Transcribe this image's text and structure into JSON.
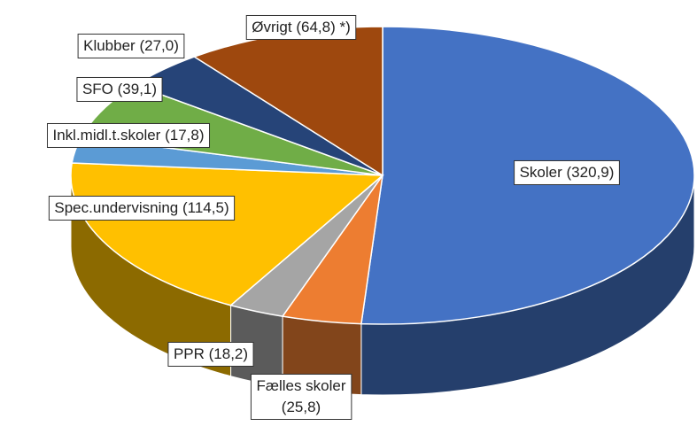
{
  "chart_data": {
    "type": "pie3d",
    "categories": [
      "Skoler",
      "Fælles skoler",
      "PPR",
      "Spec.undervisning",
      "Inkl.midl.t.skoler",
      "SFO",
      "Klubber",
      "Øvrigt"
    ],
    "values": [
      320.9,
      25.8,
      18.2,
      114.5,
      17.8,
      39.1,
      27.0,
      64.8
    ],
    "value_labels": [
      "(320,9)",
      "(25,8)",
      "(18,2)",
      "(114,5)",
      "(17,8)",
      "(39,1)",
      "(27,0)",
      "(64,8) *)"
    ],
    "colors": [
      "#4472c4",
      "#ed7d31",
      "#a5a5a5",
      "#ffc000",
      "#5b9bd5",
      "#70ad47",
      "#264478",
      "#9e480e"
    ]
  }
}
